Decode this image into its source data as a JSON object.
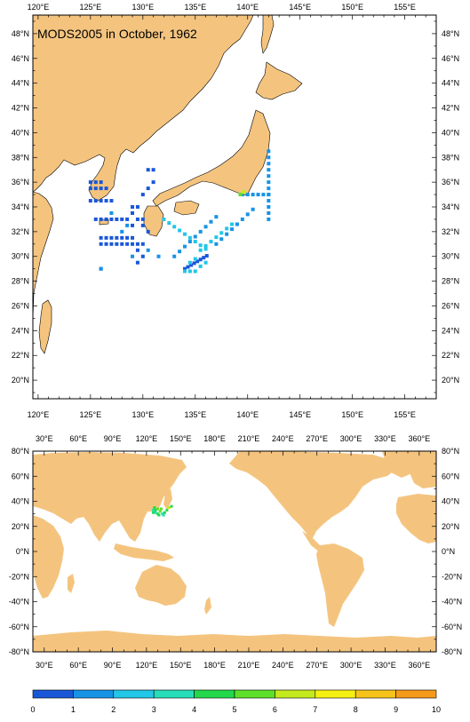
{
  "top_map": {
    "title": "MODS2005 in October, 1962",
    "lon_labels": [
      "120°E",
      "125°E",
      "130°E",
      "135°E",
      "140°E",
      "145°E",
      "150°E",
      "155°E"
    ],
    "lat_labels": [
      "48°N",
      "46°N",
      "44°N",
      "42°N",
      "40°N",
      "38°N",
      "36°N",
      "34°N",
      "32°N",
      "30°N",
      "28°N",
      "26°N",
      "24°N",
      "22°N",
      "20°N"
    ],
    "lon_range": [
      119.5,
      158
    ],
    "lat_range": [
      18.5,
      49.5
    ]
  },
  "bottom_map": {
    "lon_labels": [
      "30°E",
      "60°E",
      "90°E",
      "120°E",
      "150°E",
      "180°E",
      "210°E",
      "240°E",
      "270°E",
      "300°E",
      "330°E",
      "360°E"
    ],
    "lat_labels": [
      "80°N",
      "60°N",
      "40°N",
      "20°N",
      "0°N",
      "-20°N",
      "-40°N",
      "-60°N",
      "-80°N"
    ],
    "lon_range": [
      20,
      375
    ],
    "lat_range": [
      -80,
      80
    ]
  },
  "colorbar": {
    "labels": [
      "0",
      "1",
      "2",
      "3",
      "4",
      "5",
      "6",
      "7",
      "8",
      "9",
      "10"
    ],
    "colors": [
      "#1a57d8",
      "#1793e6",
      "#22c6e6",
      "#27dcb8",
      "#22d84a",
      "#5ee02a",
      "#c4ea1e",
      "#f6f012",
      "#f6c31a",
      "#f69a1a",
      "#ec5a18"
    ]
  },
  "colors": {
    "land": "#f4c47f",
    "ocean": "#ffffff"
  }
}
